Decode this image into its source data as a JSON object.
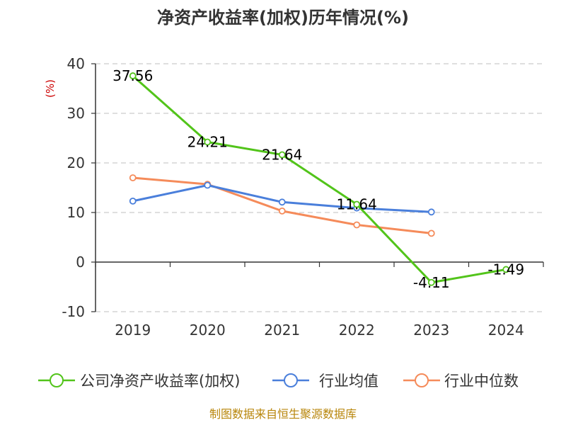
{
  "chart_data": {
    "type": "line",
    "title": "净资产收益率(加权)历年情况(%)",
    "ylabel": "(%)",
    "xlabel": "",
    "categories": [
      "2019",
      "2020",
      "2021",
      "2022",
      "2023",
      "2024"
    ],
    "ylim": [
      -10,
      40
    ],
    "yticks": [
      "40",
      "30",
      "20",
      "10",
      "0",
      "-10"
    ],
    "grid": true,
    "legend_position": "bottom",
    "series": [
      {
        "name": "公司净资产收益率(加权)",
        "color": "#52c41a",
        "values": [
          37.56,
          24.21,
          21.64,
          11.64,
          -4.11,
          -1.49
        ],
        "labels": [
          "37.56",
          "24.21",
          "21.64",
          "11.64",
          "-4.11",
          "-1.49"
        ]
      },
      {
        "name": "行业均值",
        "color": "#4a7fdb",
        "values": [
          12.3,
          15.5,
          12.1,
          10.9,
          10.1,
          null
        ]
      },
      {
        "name": "行业中位数",
        "color": "#f58b5a",
        "values": [
          17.0,
          15.7,
          10.3,
          7.5,
          5.8,
          null
        ]
      }
    ]
  },
  "source": "制图数据来自恒生聚源数据库"
}
